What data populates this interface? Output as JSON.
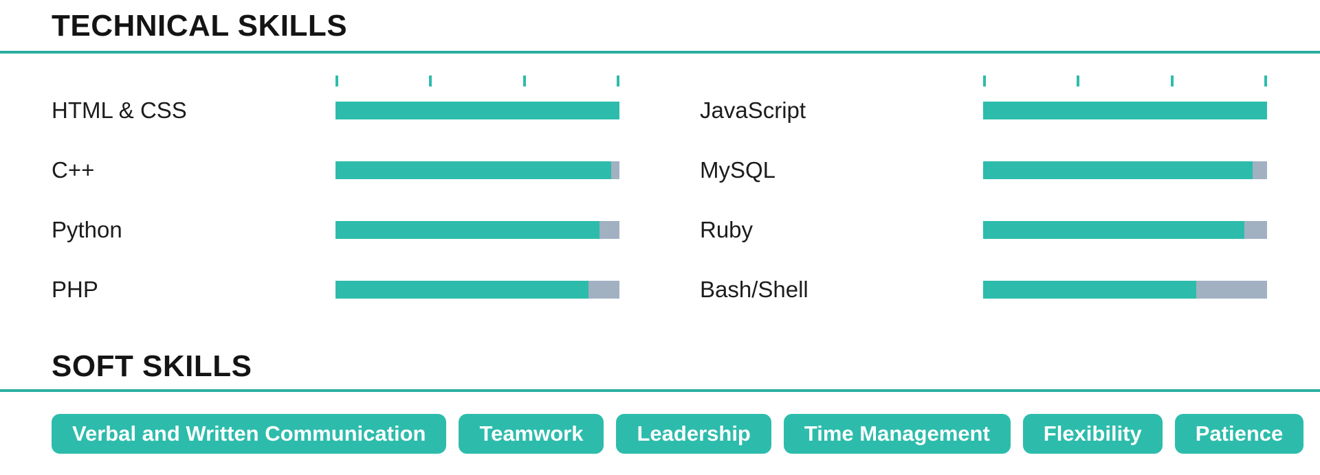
{
  "technical_section": {
    "title": "TECHNICAL SKILLS",
    "scale_ticks_per_bar": 4,
    "columns": [
      {
        "skills": [
          {
            "name": "HTML & CSS",
            "level_percent": 100
          },
          {
            "name": "C++",
            "level_percent": 97
          },
          {
            "name": "Python",
            "level_percent": 93
          },
          {
            "name": "PHP",
            "level_percent": 89
          }
        ]
      },
      {
        "skills": [
          {
            "name": "JavaScript",
            "level_percent": 100
          },
          {
            "name": "MySQL",
            "level_percent": 95
          },
          {
            "name": "Ruby",
            "level_percent": 92
          },
          {
            "name": "Bash/Shell",
            "level_percent": 75
          }
        ]
      }
    ]
  },
  "soft_section": {
    "title": "SOFT SKILLS",
    "items": [
      "Verbal and Written Communication",
      "Teamwork",
      "Leadership",
      "Time Management",
      "Flexibility",
      "Patience"
    ]
  },
  "colors": {
    "accent": "#2dbcab",
    "track": "#a1b1c2",
    "rule": "#2aaf9f",
    "heading": "#141414",
    "label": "#1c1c1c",
    "pill_text": "#ffffff",
    "bg": "#ffffff"
  }
}
